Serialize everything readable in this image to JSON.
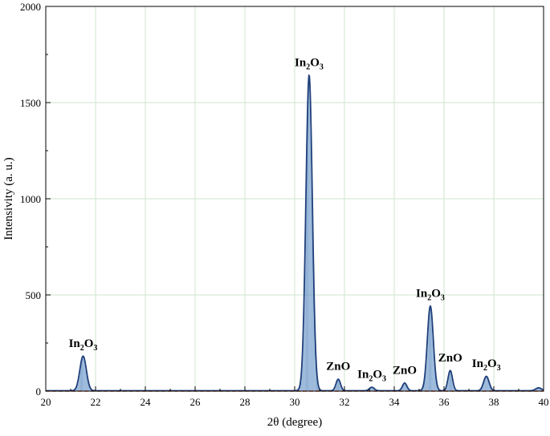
{
  "chart_data": {
    "type": "line",
    "title": "",
    "xlabel": "2θ (degree)",
    "ylabel": "Intensivity (a. u.)",
    "xlim": [
      20,
      40
    ],
    "ylim": [
      0,
      2000
    ],
    "xticks": [
      20,
      22,
      24,
      26,
      28,
      30,
      32,
      34,
      36,
      38,
      40
    ],
    "yticks": [
      0,
      500,
      1000,
      1500,
      2000
    ],
    "grid": true,
    "baseline_y": 0,
    "colors": {
      "line": "#1f3f7a",
      "fill": "#5f8fc4",
      "grid": "#cfe5cf",
      "baseline": "#e05a2a"
    },
    "series": [
      {
        "peaks": [
          {
            "x": 21.5,
            "y": 180,
            "width": 0.13
          },
          {
            "x": 30.58,
            "y": 1640,
            "width": 0.13
          },
          {
            "x": 31.75,
            "y": 60,
            "width": 0.09
          },
          {
            "x": 33.1,
            "y": 18,
            "width": 0.1
          },
          {
            "x": 34.42,
            "y": 40,
            "width": 0.09
          },
          {
            "x": 35.45,
            "y": 440,
            "width": 0.12
          },
          {
            "x": 36.25,
            "y": 105,
            "width": 0.09
          },
          {
            "x": 37.7,
            "y": 75,
            "width": 0.11
          },
          {
            "x": 39.8,
            "y": 15,
            "width": 0.12
          }
        ],
        "background": 2
      }
    ],
    "annotations": [
      {
        "main": "In",
        "sub": "2",
        "main2": "O",
        "sub2": "3",
        "x": 21.5,
        "y": 180
      },
      {
        "main": "In",
        "sub": "2",
        "main2": "O",
        "sub2": "3",
        "x": 30.58,
        "y": 1640
      },
      {
        "main": "ZnO",
        "x": 31.75,
        "y": 60
      },
      {
        "main": "In",
        "sub": "2",
        "main2": "O",
        "sub2": "3",
        "x": 33.1,
        "y": 18
      },
      {
        "main": "ZnO",
        "x": 34.42,
        "y": 40
      },
      {
        "main": "In",
        "sub": "2",
        "main2": "O",
        "sub2": "3",
        "x": 35.45,
        "y": 440
      },
      {
        "main": "ZnO",
        "x": 36.25,
        "y": 105
      },
      {
        "main": "In",
        "sub": "2",
        "main2": "O",
        "sub2": "3",
        "x": 37.7,
        "y": 75
      }
    ]
  }
}
